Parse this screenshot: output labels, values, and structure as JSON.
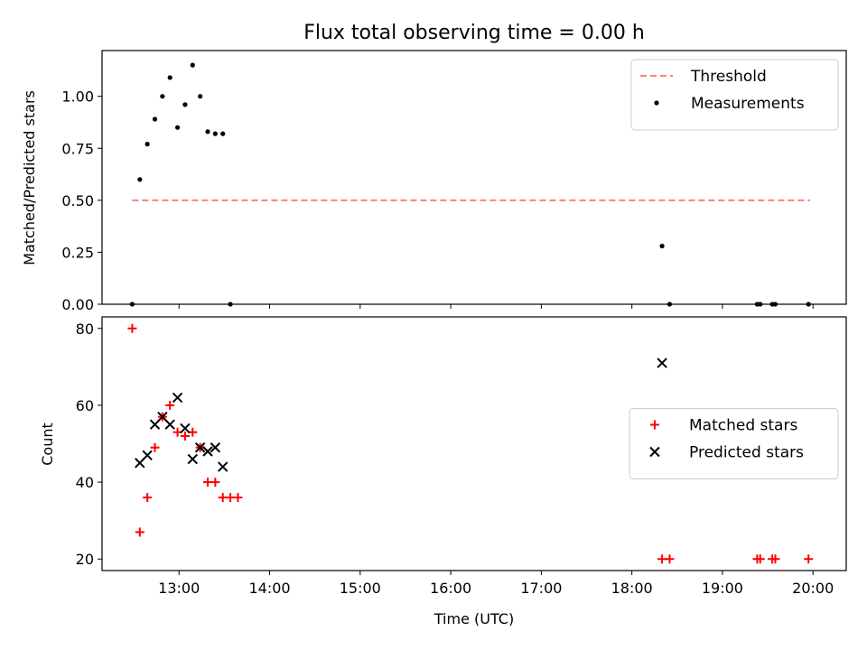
{
  "chart_data": [
    {
      "type": "scatter",
      "panel": "top",
      "title": "Flux total observing time = 0.00 h",
      "xlabel": "",
      "ylabel": "Matched/Predicted stars",
      "xlim": [
        "12:09",
        "20:22"
      ],
      "ylim": [
        0,
        1.22
      ],
      "yticks": [
        0.0,
        0.25,
        0.5,
        0.75,
        1.0
      ],
      "ytick_labels": [
        "0.00",
        "0.25",
        "0.50",
        "0.75",
        "1.00"
      ],
      "xticks": [
        "13:00",
        "14:00",
        "15:00",
        "16:00",
        "17:00",
        "18:00",
        "19:00",
        "20:00"
      ],
      "legend_position": "upper right",
      "series": [
        {
          "name": "Threshold",
          "kind": "line",
          "style": "dashed",
          "color": "#ff7f7f",
          "x": [
            "12:29",
            "19:58"
          ],
          "y": [
            0.5,
            0.5
          ]
        },
        {
          "name": "Measurements",
          "kind": "scatter",
          "marker": "dot",
          "color": "#000000",
          "x": [
            "12:29",
            "12:34",
            "12:39",
            "12:44",
            "12:49",
            "12:54",
            "12:59",
            "13:04",
            "13:09",
            "13:14",
            "13:19",
            "13:24",
            "13:29",
            "13:34",
            "18:20",
            "18:25",
            "19:23",
            "19:25",
            "19:33",
            "19:35",
            "19:57"
          ],
          "y": [
            0.0,
            0.6,
            0.77,
            0.89,
            1.0,
            1.09,
            0.85,
            0.96,
            1.15,
            1.0,
            0.83,
            0.82,
            0.82,
            0.0,
            0.28,
            0.0,
            0.0,
            0.0,
            0.0,
            0.0,
            0.0
          ]
        }
      ]
    },
    {
      "type": "scatter",
      "panel": "bottom",
      "title": "",
      "xlabel": "Time (UTC)",
      "ylabel": "Count",
      "xlim": [
        "12:09",
        "20:22"
      ],
      "ylim": [
        17,
        83
      ],
      "yticks": [
        20,
        40,
        60,
        80
      ],
      "ytick_labels": [
        "20",
        "40",
        "60",
        "80"
      ],
      "xticks": [
        "13:00",
        "14:00",
        "15:00",
        "16:00",
        "17:00",
        "18:00",
        "19:00",
        "20:00"
      ],
      "legend_position": "center right",
      "series": [
        {
          "name": "Matched stars",
          "kind": "scatter",
          "marker": "plus",
          "color": "#ff0000",
          "x": [
            "12:29",
            "12:34",
            "12:39",
            "12:44",
            "12:49",
            "12:54",
            "12:59",
            "13:04",
            "13:09",
            "13:14",
            "13:19",
            "13:24",
            "13:29",
            "13:34",
            "13:39",
            "18:20",
            "18:25",
            "19:23",
            "19:25",
            "19:33",
            "19:35",
            "19:57"
          ],
          "y": [
            80,
            27,
            36,
            49,
            57,
            60,
            53,
            52,
            53,
            49,
            40,
            40,
            36,
            36,
            36,
            20,
            20,
            20,
            20,
            20,
            20,
            20
          ]
        },
        {
          "name": "Predicted stars",
          "kind": "scatter",
          "marker": "x",
          "color": "#000000",
          "x": [
            "12:34",
            "12:39",
            "12:44",
            "12:49",
            "12:54",
            "12:59",
            "13:04",
            "13:09",
            "13:14",
            "13:19",
            "13:24",
            "13:29",
            "18:20"
          ],
          "y": [
            45,
            47,
            55,
            57,
            55,
            62,
            54,
            46,
            49,
            48,
            49,
            44,
            71
          ]
        }
      ]
    }
  ]
}
